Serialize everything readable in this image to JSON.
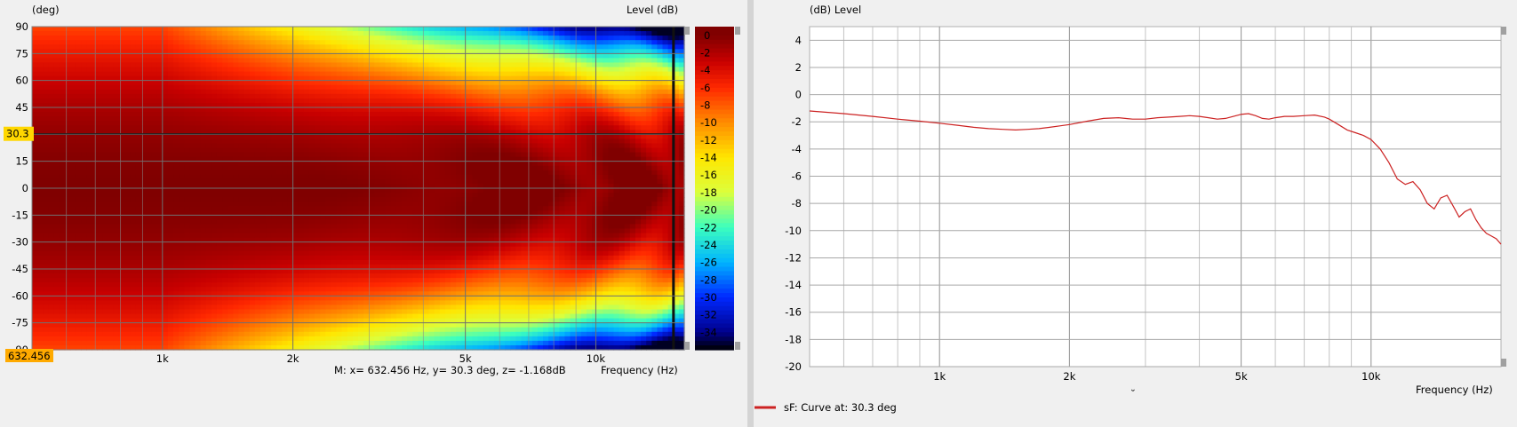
{
  "left_panel": {
    "unit_label": "(deg)",
    "level_label": "Level  (dB)",
    "cursor_y_badge": "30.3",
    "cursor_x_badge": "632.456",
    "marker_text": "M:  x= 632.456 Hz,  y= 30.3 deg, z= -1.168dB",
    "freq_label": "Frequency  (Hz)"
  },
  "right_panel": {
    "header": "(dB)  Level",
    "freq_label": "Frequency  (Hz)",
    "legend_text": "sF: Curve at: 30.3 deg",
    "bottom_mark": "˘"
  },
  "colors": {
    "curve": "#cc2222",
    "badge": "#ffd700",
    "badge_x": "#ffaa00"
  },
  "chart_data": [
    {
      "type": "heatmap",
      "title": "",
      "xlabel": "Frequency  (Hz)",
      "ylabel": "(deg)",
      "x_scale": "log",
      "xlim": [
        500,
        16000
      ],
      "ylim": [
        -90,
        90
      ],
      "x_ticks": [
        {
          "v": 1000,
          "label": "1k"
        },
        {
          "v": 2000,
          "label": "2k"
        },
        {
          "v": 5000,
          "label": "5k"
        },
        {
          "v": 10000,
          "label": "10k"
        }
      ],
      "y_ticks": [
        90,
        75,
        60,
        45,
        30,
        15,
        0,
        -15,
        -30,
        -45,
        -60,
        -75,
        -90
      ],
      "colorbar_ticks": [
        0,
        -2,
        -4,
        -6,
        -8,
        -10,
        -12,
        -14,
        -16,
        -18,
        -20,
        -22,
        -24,
        -26,
        -28,
        -30,
        -32,
        -34
      ],
      "colorbar_range": [
        -36,
        1
      ],
      "cursor": {
        "x": 632.456,
        "y": 30.3,
        "z": -1.168
      }
    },
    {
      "type": "line",
      "title": "",
      "xlabel": "Frequency  (Hz)",
      "ylabel": "(dB)  Level",
      "x_scale": "log",
      "xlim": [
        500,
        20000
      ],
      "ylim": [
        -20,
        5
      ],
      "x_ticks": [
        {
          "v": 1000,
          "label": "1k"
        },
        {
          "v": 2000,
          "label": "2k"
        },
        {
          "v": 5000,
          "label": "5k"
        },
        {
          "v": 10000,
          "label": "10k"
        }
      ],
      "y_ticks": [
        4,
        2,
        0,
        -2,
        -4,
        -6,
        -8,
        -10,
        -12,
        -14,
        -16,
        -18,
        -20
      ],
      "series": [
        {
          "name": "sF: Curve at: 30.3 deg",
          "x": [
            500,
            600,
            700,
            800,
            900,
            1000,
            1100,
            1200,
            1300,
            1400,
            1500,
            1600,
            1700,
            1800,
            1900,
            2000,
            2200,
            2400,
            2600,
            2800,
            3000,
            3200,
            3400,
            3600,
            3800,
            4000,
            4200,
            4400,
            4600,
            4800,
            5000,
            5200,
            5400,
            5600,
            5800,
            6000,
            6300,
            6600,
            7000,
            7400,
            7800,
            8000,
            8400,
            8800,
            9200,
            9600,
            10000,
            10500,
            11000,
            11500,
            12000,
            12500,
            13000,
            13500,
            14000,
            14500,
            15000,
            15500,
            16000,
            16500,
            17000,
            17500,
            18000,
            18500,
            19000,
            19500,
            20000
          ],
          "y": [
            -1.2,
            -1.4,
            -1.6,
            -1.8,
            -1.95,
            -2.1,
            -2.25,
            -2.4,
            -2.5,
            -2.55,
            -2.6,
            -2.55,
            -2.5,
            -2.4,
            -2.3,
            -2.2,
            -1.95,
            -1.75,
            -1.7,
            -1.8,
            -1.8,
            -1.7,
            -1.65,
            -1.6,
            -1.55,
            -1.6,
            -1.7,
            -1.8,
            -1.75,
            -1.6,
            -1.45,
            -1.4,
            -1.55,
            -1.75,
            -1.8,
            -1.7,
            -1.6,
            -1.6,
            -1.55,
            -1.5,
            -1.65,
            -1.8,
            -2.2,
            -2.6,
            -2.8,
            -3.0,
            -3.3,
            -4.0,
            -5.0,
            -6.2,
            -6.6,
            -6.4,
            -7.0,
            -8.0,
            -8.4,
            -7.6,
            -7.4,
            -8.2,
            -9.0,
            -8.6,
            -8.4,
            -9.2,
            -9.8,
            -10.2,
            -10.4,
            -10.6,
            -11.0
          ]
        }
      ]
    }
  ]
}
